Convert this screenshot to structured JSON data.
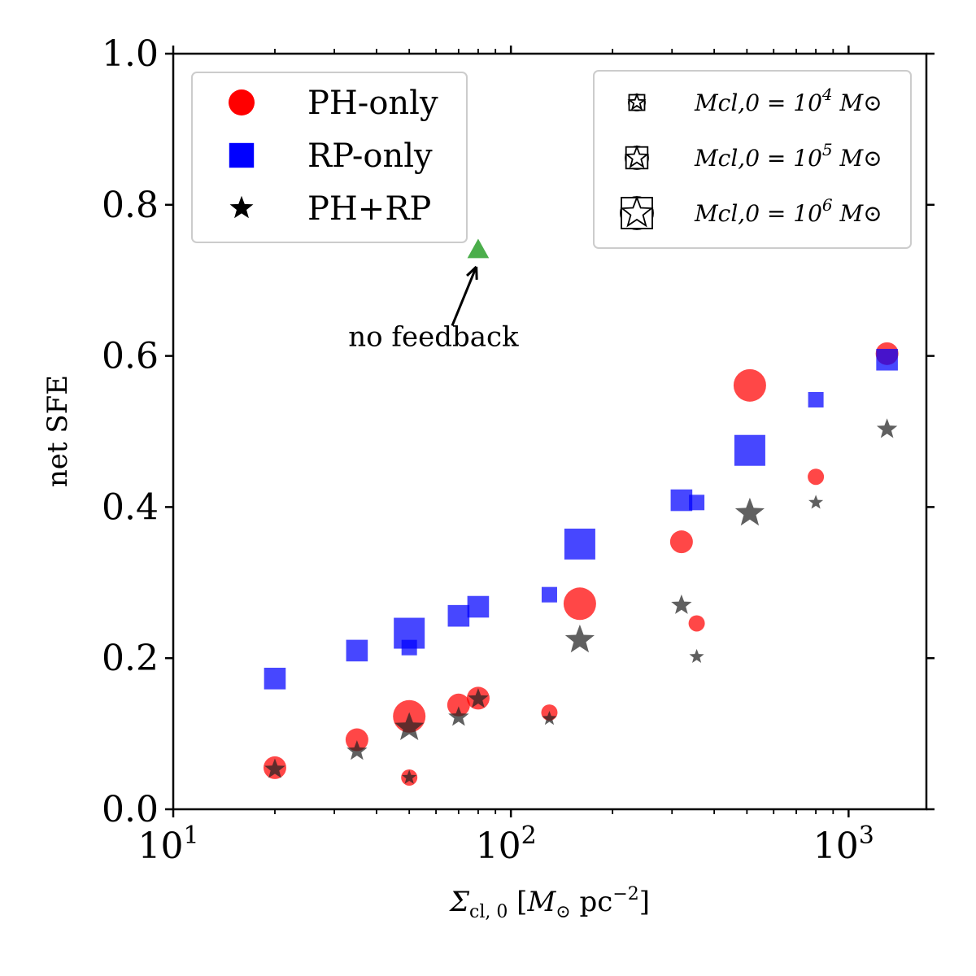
{
  "chart_data": {
    "type": "scatter",
    "title": "",
    "xlabel": "Σcl,0 [M⊙ pc−2]",
    "ylabel": "net SFE",
    "xscale": "log",
    "xlim": [
      10,
      1700
    ],
    "ylim": [
      0,
      1.0
    ],
    "xticks": [
      {
        "value": 10,
        "base": "10",
        "exp": "1"
      },
      {
        "value": 100,
        "base": "10",
        "exp": "2"
      },
      {
        "value": 1000,
        "base": "10",
        "exp": "3"
      }
    ],
    "yticks": [
      "0.0",
      "0.2",
      "0.4",
      "0.6",
      "0.8",
      "1.0"
    ],
    "grid": false,
    "legend_placement": "top-left",
    "series": [
      {
        "name": "PH-only",
        "marker": "circle",
        "color": "#ff0000",
        "points": [
          {
            "x": 20,
            "y": 0.055,
            "mass": 5
          },
          {
            "x": 35,
            "y": 0.092,
            "mass": 5
          },
          {
            "x": 50,
            "y": 0.123,
            "mass": 6
          },
          {
            "x": 50,
            "y": 0.042,
            "mass": 4
          },
          {
            "x": 70,
            "y": 0.138,
            "mass": 5
          },
          {
            "x": 80,
            "y": 0.147,
            "mass": 5
          },
          {
            "x": 130,
            "y": 0.128,
            "mass": 4
          },
          {
            "x": 160,
            "y": 0.272,
            "mass": 6
          },
          {
            "x": 320,
            "y": 0.354,
            "mass": 5
          },
          {
            "x": 355,
            "y": 0.246,
            "mass": 4
          },
          {
            "x": 510,
            "y": 0.561,
            "mass": 6
          },
          {
            "x": 800,
            "y": 0.44,
            "mass": 4
          },
          {
            "x": 1300,
            "y": 0.603,
            "mass": 5
          }
        ]
      },
      {
        "name": "RP-only",
        "marker": "square",
        "color": "#0000ff",
        "points": [
          {
            "x": 20,
            "y": 0.173,
            "mass": 5
          },
          {
            "x": 35,
            "y": 0.21,
            "mass": 5
          },
          {
            "x": 50,
            "y": 0.233,
            "mass": 6
          },
          {
            "x": 50,
            "y": 0.214,
            "mass": 4
          },
          {
            "x": 70,
            "y": 0.256,
            "mass": 5
          },
          {
            "x": 80,
            "y": 0.268,
            "mass": 5
          },
          {
            "x": 130,
            "y": 0.284,
            "mass": 4
          },
          {
            "x": 160,
            "y": 0.351,
            "mass": 6
          },
          {
            "x": 320,
            "y": 0.409,
            "mass": 5
          },
          {
            "x": 355,
            "y": 0.406,
            "mass": 4
          },
          {
            "x": 510,
            "y": 0.475,
            "mass": 6
          },
          {
            "x": 800,
            "y": 0.542,
            "mass": 4
          },
          {
            "x": 1300,
            "y": 0.595,
            "mass": 5
          }
        ]
      },
      {
        "name": "PH+RP",
        "marker": "star",
        "color": "#222222",
        "points": [
          {
            "x": 20,
            "y": 0.053,
            "mass": 5
          },
          {
            "x": 35,
            "y": 0.077,
            "mass": 5
          },
          {
            "x": 50,
            "y": 0.108,
            "mass": 6
          },
          {
            "x": 50,
            "y": 0.042,
            "mass": 4
          },
          {
            "x": 70,
            "y": 0.122,
            "mass": 5
          },
          {
            "x": 80,
            "y": 0.146,
            "mass": 5
          },
          {
            "x": 130,
            "y": 0.12,
            "mass": 4
          },
          {
            "x": 160,
            "y": 0.224,
            "mass": 6
          },
          {
            "x": 320,
            "y": 0.27,
            "mass": 5
          },
          {
            "x": 355,
            "y": 0.202,
            "mass": 4
          },
          {
            "x": 510,
            "y": 0.392,
            "mass": 6
          },
          {
            "x": 800,
            "y": 0.406,
            "mass": 4
          },
          {
            "x": 1300,
            "y": 0.503,
            "mass": 5
          }
        ]
      }
    ],
    "no_feedback_point": {
      "x": 80,
      "y": 0.74,
      "marker": "triangle",
      "color": "#2ca02c"
    },
    "annotation": {
      "text": "no feedback",
      "text_x": 80,
      "text_y": 0.61,
      "arrow_from": [
        67,
        0.64
      ],
      "arrow_to": [
        79,
        0.718
      ]
    },
    "legend": {
      "types": [
        {
          "label": "PH-only",
          "marker": "circle",
          "color": "#ff0000"
        },
        {
          "label": "RP-only",
          "marker": "square",
          "color": "#0000ff"
        },
        {
          "label": "PH+RP",
          "marker": "star",
          "color": "#000000"
        }
      ],
      "masses": [
        {
          "label_prefix": "Mcl,0 = 10",
          "exp": "4",
          "label_suffix": " M⊙",
          "mass": 4
        },
        {
          "label_prefix": "Mcl,0 = 10",
          "exp": "5",
          "label_suffix": " M⊙",
          "mass": 5
        },
        {
          "label_prefix": "Mcl,0 = 10",
          "exp": "6",
          "label_suffix": " M⊙",
          "mass": 6
        }
      ]
    }
  }
}
